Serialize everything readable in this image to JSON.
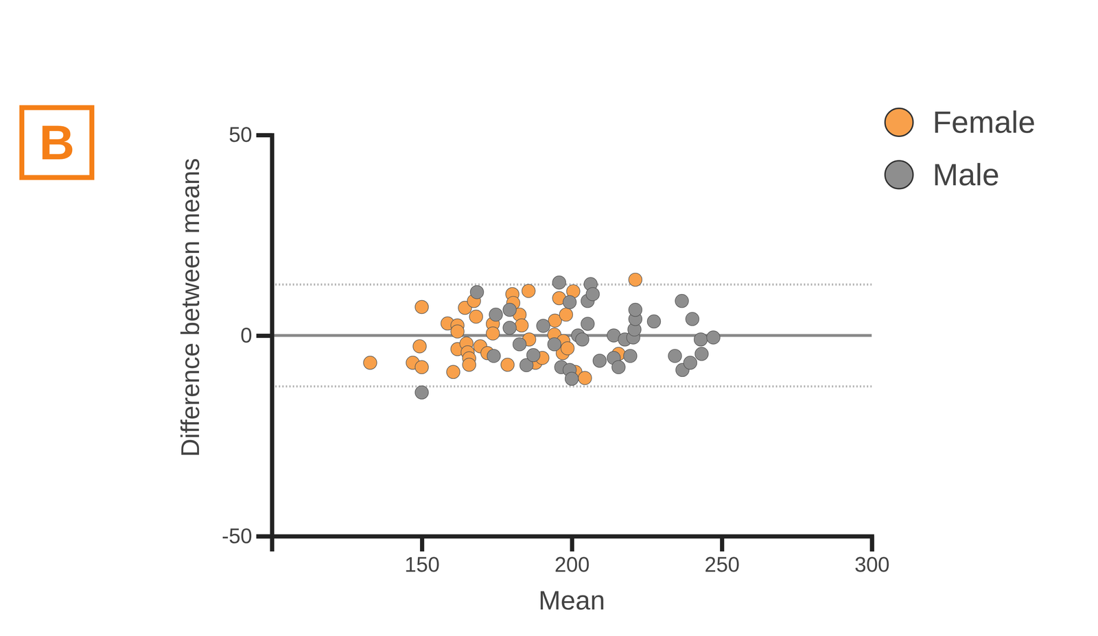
{
  "chart_data": {
    "type": "scatter",
    "panel_label": "B",
    "xlabel": "Mean",
    "ylabel": "Difference between means",
    "xlim": [
      100,
      300
    ],
    "xticks": [
      150,
      200,
      250,
      300
    ],
    "ylim": [
      -50,
      50
    ],
    "yticks": [
      -50,
      0,
      50
    ],
    "mean_difference": 0,
    "limits_of_agreement": [
      -12.7,
      12.7
    ],
    "legend": "top-right",
    "grid": false,
    "marker": "circle",
    "series": [
      {
        "name": "Female",
        "color": "#f8a04b",
        "x": [
          132.8,
          147,
          150,
          149.3,
          150,
          158.6,
          161.9,
          161.9,
          160.5,
          161.9,
          164.4,
          167.4,
          168.1,
          164.9,
          165.3,
          165.8,
          165.8,
          169.5,
          171.9,
          173.7,
          173.7,
          178.6,
          180.2,
          180.5,
          182.6,
          183.3,
          185.6,
          185.8,
          187.9,
          190.2,
          194.4,
          194.2,
          195.8,
          198.1,
          197.2,
          197.0,
          198.6,
          200.5,
          201.2,
          204.4,
          215.6,
          221.2
        ],
        "values": [
          -6.8,
          -6.8,
          7.1,
          -2.7,
          -7.9,
          3.0,
          2.5,
          1.0,
          -9.1,
          -3.4,
          6.9,
          8.6,
          4.7,
          -2.0,
          -4.2,
          -5.7,
          -7.3,
          -2.7,
          -4.4,
          2.9,
          0.5,
          -7.3,
          10.3,
          8.1,
          5.2,
          2.5,
          11.1,
          -1.0,
          -6.8,
          -5.6,
          3.7,
          0.2,
          9.3,
          5.2,
          -1.4,
          -4.4,
          -3.2,
          11.0,
          -9.1,
          -10.6,
          -4.6,
          13.9
        ]
      },
      {
        "name": "Male",
        "color": "#8e8e8e",
        "x": [
          150,
          168.4,
          174.7,
          174.0,
          179.3,
          179.3,
          182.6,
          184.9,
          187.2,
          190.5,
          194.2,
          195.8,
          199.3,
          196.5,
          199.3,
          200,
          202.1,
          203.5,
          205.3,
          205.3,
          206.3,
          207,
          209.3,
          214,
          214,
          215.6,
          217.7,
          219.5,
          220.5,
          220.9,
          221.2,
          221.2,
          227.4,
          234.4,
          236.7,
          236.9,
          239.5,
          240.2,
          243,
          243.3,
          247.2
        ],
        "values": [
          -14.2,
          10.8,
          5.2,
          -5.1,
          6.4,
          1.9,
          -2.2,
          -7.4,
          -4.9,
          2.4,
          -2.2,
          13.2,
          8.3,
          -7.9,
          -8.6,
          -10.8,
          0,
          -1.0,
          2.9,
          8.6,
          12.8,
          10.3,
          -6.3,
          0,
          -5.6,
          -7.9,
          -1.0,
          -5.1,
          -0.5,
          1.5,
          4.1,
          6.4,
          3.5,
          -5.1,
          8.6,
          -8.6,
          -6.8,
          4.1,
          -1.0,
          -4.6,
          -0.5
        ]
      }
    ]
  }
}
